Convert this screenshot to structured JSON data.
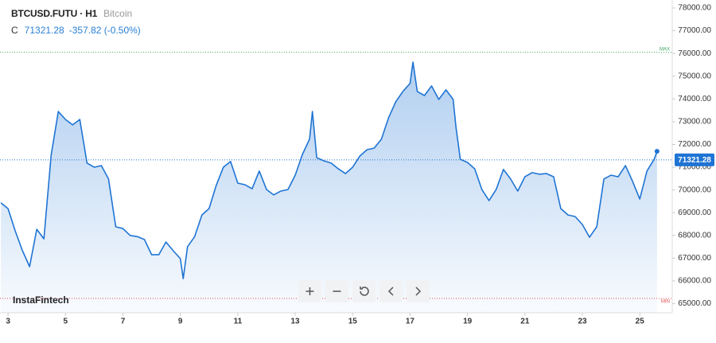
{
  "header": {
    "symbol": "BTCUSD.FUTU · H1",
    "description": "Bitcoin",
    "close_label": "C",
    "change": "-357.82 (-0.50%)"
  },
  "brand": "InstaFintech",
  "chart_data": {
    "type": "area",
    "color": "#1f74d4",
    "x": [
      2.75,
      3.0,
      3.25,
      3.5,
      3.75,
      4.0,
      4.25,
      4.5,
      4.75,
      5.0,
      5.25,
      5.5,
      5.75,
      6.0,
      6.25,
      6.5,
      6.75,
      7.0,
      7.25,
      7.5,
      7.75,
      8.0,
      8.25,
      8.5,
      8.75,
      9.0,
      9.1,
      9.25,
      9.5,
      9.75,
      10.0,
      10.25,
      10.5,
      10.75,
      11.0,
      11.25,
      11.5,
      11.75,
      12.0,
      12.25,
      12.5,
      12.75,
      13.0,
      13.25,
      13.5,
      13.6,
      13.75,
      14.0,
      14.25,
      14.5,
      14.75,
      15.0,
      15.25,
      15.5,
      15.75,
      16.0,
      16.25,
      16.5,
      16.75,
      17.0,
      17.1,
      17.25,
      17.5,
      17.75,
      18.0,
      18.25,
      18.5,
      18.6,
      18.75,
      19.0,
      19.25,
      19.5,
      19.75,
      20.0,
      20.25,
      20.5,
      20.75,
      21.0,
      21.25,
      21.5,
      21.75,
      22.0,
      22.25,
      22.5,
      22.75,
      23.0,
      23.25,
      23.5,
      23.75,
      24.0,
      24.25,
      24.5,
      24.75,
      25.0,
      25.25,
      25.5,
      25.6
    ],
    "series": [
      {
        "name": "BTCUSD.FUTU",
        "values": [
          69430,
          69180,
          68200,
          67330,
          66630,
          68270,
          67850,
          71530,
          73450,
          73100,
          72860,
          73100,
          71180,
          71000,
          71070,
          70480,
          68380,
          68300,
          68000,
          67950,
          67820,
          67150,
          67150,
          67710,
          67330,
          66980,
          66100,
          67500,
          67950,
          68900,
          69180,
          70200,
          71000,
          71250,
          70300,
          70230,
          70050,
          70830,
          70020,
          69780,
          69950,
          70020,
          70650,
          71560,
          72230,
          73450,
          71420,
          71280,
          71180,
          70930,
          70720,
          71000,
          71490,
          71770,
          71840,
          72230,
          73170,
          73870,
          74330,
          74680,
          75620,
          74330,
          74150,
          74570,
          73980,
          74400,
          73980,
          72750,
          71350,
          71210,
          70930,
          70020,
          69530,
          70020,
          70900,
          70480,
          69950,
          70580,
          70760,
          70690,
          70720,
          70580,
          69180,
          68900,
          68830,
          68480,
          67920,
          68380,
          70480,
          70650,
          70580,
          71070,
          70370,
          69600,
          70830,
          71350,
          71700
        ]
      }
    ],
    "xlim": [
      2.72,
      26.13
    ],
    "xticks": [
      3,
      5,
      7,
      9,
      11,
      13,
      15,
      17,
      19,
      21,
      23,
      25
    ],
    "ylim": [
      64600,
      78350
    ],
    "yticks": [
      {
        "value": 65000,
        "label": "65000.00"
      },
      {
        "value": 66000,
        "label": "66000.00"
      },
      {
        "value": 67000,
        "label": "67000.00"
      },
      {
        "value": 68000,
        "label": "68000.00"
      },
      {
        "value": 69000,
        "label": "69000.00"
      },
      {
        "value": 70000,
        "label": "70000.00"
      },
      {
        "value": 71000,
        "label": "71000.00"
      },
      {
        "value": 72000,
        "label": "72000.00"
      },
      {
        "value": 73000,
        "label": "73000.00"
      },
      {
        "value": 74000,
        "label": "74000.00"
      },
      {
        "value": 75000,
        "label": "75000.00"
      },
      {
        "value": 76000,
        "label": "76000.00"
      },
      {
        "value": 77000,
        "label": "77000.00"
      },
      {
        "value": 78000,
        "label": "78000.00"
      }
    ],
    "last_price": 71321.28,
    "max_line": {
      "label": "MAX",
      "value": 76050,
      "color": "#3aa35a"
    },
    "min_line": {
      "label": "MIN",
      "value": 65230,
      "color": "#e05050"
    }
  }
}
